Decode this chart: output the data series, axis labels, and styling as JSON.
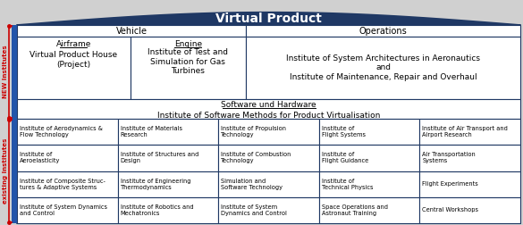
{
  "title": "Virtual Product",
  "title_bg": "#1f3864",
  "title_fg": "white",
  "outer_border": "#1f3864",
  "label_new_institutes": "NEW Institutes",
  "label_existing": "existing Institutes",
  "label_vehicle": "Vehicle",
  "label_operations": "Operations",
  "airframe_title": "Airframe",
  "airframe_body": "Virtual Product House\n(Project)",
  "engine_title": "Engine",
  "engine_body": "Institute of Test and\nSimulation for Gas\nTurbines",
  "ops_body": "Institute of System Architectures in Aeronautics\nand\nInstitute of Maintenance, Repair and Overhaul",
  "software_label": "Software und Hardware",
  "software_institute": "Institute of Software Methods for Product Virtualisation",
  "existing_cells": [
    [
      "Institute of Aerodynamics &\nFlow Technology",
      "Institute of Materials\nResearch",
      "Institute of Propulsion\nTechnology",
      "Institute of\nFlight Systems",
      "Institute of Air Transport and\nAirport Research"
    ],
    [
      "Institute of\nAeroelasticity",
      "Institute of Structures and\nDesign",
      "Institute of Combustion\nTechnology",
      "Institute of\nFlight Guidance",
      "Air Transportation\nSystems"
    ],
    [
      "Institute of Composite Struc-\ntures & Adaptive Systems",
      "Institute of Engineering\nThermodynamics",
      "Simulation and\nSoftware Technology",
      "Institute of\nTechnical Physics",
      "Flight Experiments"
    ],
    [
      "Institute of System Dynamics\nand Control",
      "Institute of Robotics and\nMechatronics",
      "Institute of System\nDynamics and Control",
      "Space Operations and\nAstronaut Training",
      "Central Workshops"
    ]
  ],
  "bracket_color": "#cc0000",
  "bg_color": "#d0d0d0",
  "blue_bar": "#2255aa"
}
